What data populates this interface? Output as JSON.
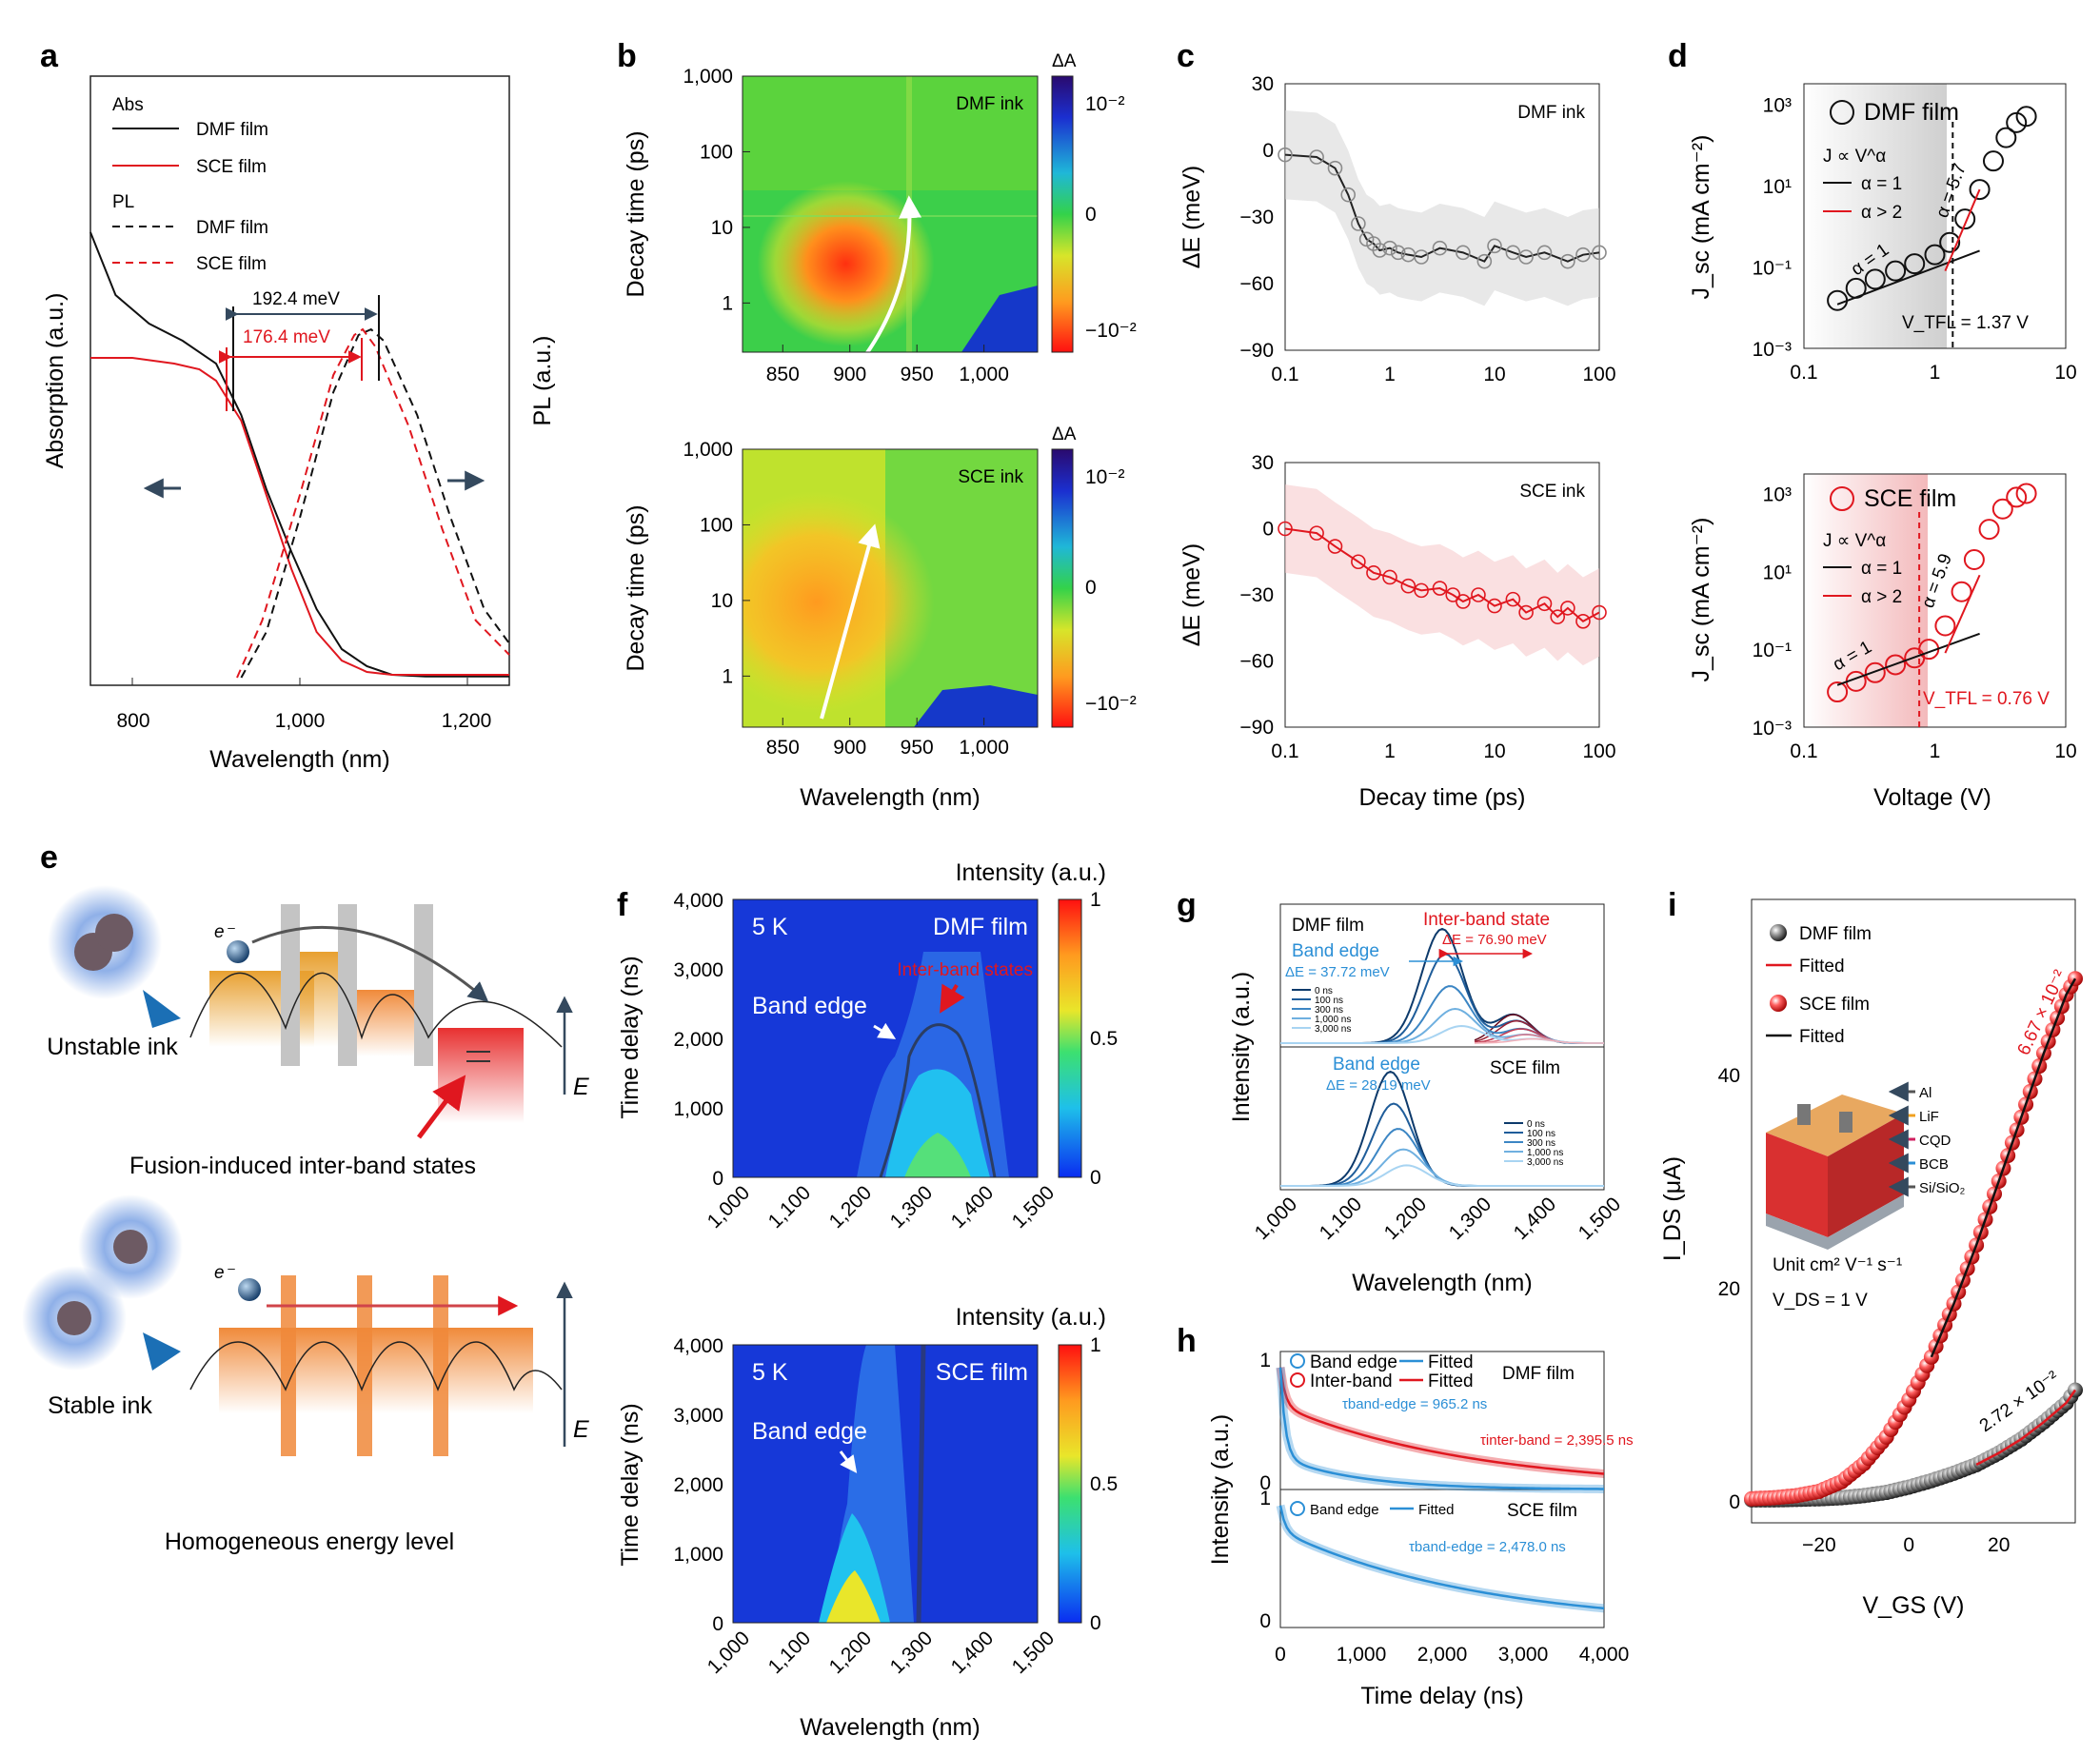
{
  "panel_labels": {
    "a": "a",
    "b": "b",
    "c": "c",
    "d": "d",
    "e": "e",
    "f": "f",
    "g": "g",
    "h": "h",
    "i": "i"
  },
  "colors": {
    "black": "#111111",
    "red": "#e0171f",
    "blue": "#2b8fd6",
    "grey": "#8a8a8a",
    "pink": "#f6c7c8"
  },
  "chart_data": [
    {
      "id": "a",
      "type": "line",
      "xlabel": "Wavelength (nm)",
      "ylabel_left": "Absorption (a.u.)",
      "ylabel_right": "PL (a.u.)",
      "xticks": [
        "800",
        "1,000",
        "1,200"
      ],
      "xlim": [
        750,
        1250
      ],
      "legend": {
        "abs_header": "Abs",
        "pl_header": "PL",
        "dmf": "DMF film",
        "sce": "SCE film"
      },
      "annotations": {
        "dmf_shift": "192.4 meV",
        "sce_shift": "176.4 meV"
      },
      "series": [
        {
          "name": "DMF film",
          "kind": "Abs",
          "x": [
            750,
            780,
            820,
            860,
            900,
            930,
            960,
            990,
            1020,
            1050,
            1080,
            1110,
            1150,
            1250
          ],
          "y": [
            0.78,
            0.67,
            0.62,
            0.59,
            0.55,
            0.46,
            0.33,
            0.22,
            0.12,
            0.05,
            0.02,
            0.005,
            0.002,
            0.002
          ]
        },
        {
          "name": "SCE film",
          "kind": "Abs",
          "x": [
            750,
            800,
            850,
            880,
            900,
            930,
            960,
            990,
            1020,
            1050,
            1080,
            1110,
            1250
          ],
          "y": [
            0.56,
            0.56,
            0.55,
            0.54,
            0.52,
            0.45,
            0.32,
            0.19,
            0.08,
            0.03,
            0.01,
            0.005,
            0.005
          ]
        },
        {
          "name": "DMF film",
          "kind": "PL",
          "x": [
            930,
            960,
            1000,
            1040,
            1070,
            1085,
            1100,
            1140,
            1180,
            1220,
            1250
          ],
          "y": [
            0.0,
            0.08,
            0.28,
            0.5,
            0.6,
            0.61,
            0.59,
            0.46,
            0.28,
            0.12,
            0.06
          ]
        },
        {
          "name": "SCE film",
          "kind": "PL",
          "x": [
            925,
            955,
            1000,
            1040,
            1065,
            1075,
            1090,
            1130,
            1170,
            1210,
            1250
          ],
          "y": [
            0.0,
            0.1,
            0.32,
            0.53,
            0.6,
            0.61,
            0.58,
            0.44,
            0.26,
            0.1,
            0.04
          ]
        }
      ]
    },
    {
      "id": "b",
      "type": "heatmap",
      "xlabel": "Wavelength (nm)",
      "ylabel": "Decay time (ps)",
      "cbar_label": "ΔA",
      "xticks": [
        "850",
        "900",
        "950",
        "1,000"
      ],
      "yticks": [
        "1,000",
        "100",
        "10",
        "1"
      ],
      "cbar_ticks": [
        "10⁻²",
        "0",
        "−10⁻²"
      ],
      "maps": [
        {
          "name": "DMF ink"
        },
        {
          "name": "SCE ink"
        }
      ]
    },
    {
      "id": "c",
      "type": "scatter",
      "xlabel": "Decay time (ps)",
      "ylabel": "ΔE (meV)",
      "xticks": [
        "0.1",
        "1",
        "10",
        "100"
      ],
      "yticks": [
        "30",
        "0",
        "−30",
        "−60",
        "−90"
      ],
      "ylim": [
        -90,
        30
      ],
      "series": [
        {
          "name": "DMF ink",
          "x": [
            0.1,
            0.2,
            0.3,
            0.4,
            0.5,
            0.6,
            0.7,
            0.8,
            1,
            1.2,
            1.5,
            2,
            3,
            5,
            8,
            10,
            15,
            20,
            30,
            50,
            70,
            100
          ],
          "y": [
            -2,
            -3,
            -8,
            -20,
            -33,
            -40,
            -42,
            -45,
            -44,
            -46,
            -47,
            -48,
            -44,
            -46,
            -50,
            -43,
            -46,
            -48,
            -46,
            -50,
            -47,
            -46
          ]
        },
        {
          "name": "SCE ink",
          "x": [
            0.1,
            0.2,
            0.3,
            0.5,
            0.7,
            1,
            1.5,
            2,
            3,
            4,
            5,
            7,
            10,
            15,
            20,
            30,
            40,
            50,
            70,
            100
          ],
          "y": [
            0,
            -2,
            -8,
            -15,
            -20,
            -22,
            -26,
            -28,
            -27,
            -30,
            -33,
            -30,
            -35,
            -32,
            -38,
            -34,
            -40,
            -36,
            -42,
            -38
          ]
        }
      ]
    },
    {
      "id": "d",
      "type": "scatter",
      "xlabel": "Voltage (V)",
      "ylabel": "J_sc (mA cm⁻²)",
      "xticks": [
        "0.1",
        "1",
        "10"
      ],
      "yticks": [
        "10³",
        "10¹",
        "10⁻¹",
        "10⁻³"
      ],
      "legend": {
        "law": "J ∝ V^α",
        "ohmic": "α = 1",
        "tcl": "α > 2"
      },
      "series": [
        {
          "name": "DMF film",
          "vtfl": "V_TFL = 1.37 V",
          "slope_ohm": "α = 1",
          "slope_tcl": "α = 5.7",
          "x": [
            0.18,
            0.25,
            0.35,
            0.5,
            0.7,
            1,
            1.3,
            1.7,
            2.2,
            2.8,
            3.5,
            4.2,
            5
          ],
          "y": [
            0.015,
            0.03,
            0.05,
            0.08,
            0.12,
            0.2,
            0.4,
            1.5,
            8,
            40,
            150,
            350,
            500
          ]
        },
        {
          "name": "SCE film",
          "vtfl": "V_TFL = 0.76 V",
          "slope_ohm": "α = 1",
          "slope_tcl": "α = 5.9",
          "x": [
            0.18,
            0.25,
            0.35,
            0.5,
            0.7,
            0.9,
            1.2,
            1.6,
            2,
            2.6,
            3.3,
            4.2,
            5
          ],
          "y": [
            0.008,
            0.015,
            0.025,
            0.04,
            0.06,
            0.1,
            0.4,
            3,
            20,
            120,
            400,
            800,
            1000
          ]
        }
      ]
    },
    {
      "id": "f",
      "type": "heatmap",
      "xlabel": "Wavelength (nm)",
      "ylabel": "Time delay (ns)",
      "cbar_label": "Intensity (a.u.)",
      "xticks": [
        "1,000",
        "1,100",
        "1,200",
        "1,300",
        "1,400",
        "1,500"
      ],
      "yticks": [
        "4,000",
        "3,000",
        "2,000",
        "1,000",
        "0"
      ],
      "cbar_ticks": [
        "1",
        "0.5",
        "0"
      ],
      "maps": [
        {
          "name": "DMF film",
          "temp": "5 K",
          "labels": {
            "band_edge": "Band edge",
            "inter": "Inter-band states"
          }
        },
        {
          "name": "SCE film",
          "temp": "5 K",
          "labels": {
            "band_edge": "Band edge"
          }
        }
      ]
    },
    {
      "id": "g",
      "type": "line",
      "xlabel": "Wavelength (nm)",
      "ylabel": "Intensity (a.u.)",
      "xticks": [
        "1,000",
        "1,100",
        "1,200",
        "1,300",
        "1,400",
        "1,500"
      ],
      "legend_times": [
        "0 ns",
        "100 ns",
        "300 ns",
        "1,000 ns",
        "3,000 ns"
      ],
      "series": [
        {
          "name": "DMF film",
          "band_edge": "Band edge",
          "band_dE": "ΔE = 37.72 meV",
          "inter": "Inter-band state",
          "inter_dE": "ΔE = 76.90 meV",
          "peak_nm": [
            1250,
            1255,
            1262,
            1270,
            1280
          ],
          "amp": [
            1.0,
            0.78,
            0.5,
            0.3,
            0.15
          ]
        },
        {
          "name": "SCE film",
          "band_edge": "Band edge",
          "band_dE": "ΔE = 28.19 meV",
          "peak_nm": [
            1170,
            1175,
            1182,
            1190,
            1195
          ],
          "amp": [
            1.0,
            0.72,
            0.5,
            0.32,
            0.18
          ]
        }
      ]
    },
    {
      "id": "h",
      "type": "line",
      "xlabel": "Time delay (ns)",
      "ylabel": "Intensity (a.u.)",
      "xticks": [
        "0",
        "1,000",
        "2,000",
        "3,000",
        "4,000"
      ],
      "yticks": [
        "1",
        "0"
      ],
      "legend": {
        "band": "Band edge",
        "inter": "Inter-band",
        "fitted": "Fitted"
      },
      "series": [
        {
          "name": "DMF film",
          "tau_band": "τband-edge = 965.2 ns",
          "tau_inter": "τinter-band = 2,395.5 ns"
        },
        {
          "name": "SCE film",
          "tau_band": "τband-edge = 2,478.0 ns"
        }
      ]
    },
    {
      "id": "i",
      "type": "scatter",
      "xlabel": "V_GS (V)",
      "ylabel": "I_DS (μA)",
      "xticks": [
        "−20",
        "0",
        "20"
      ],
      "yticks": [
        "40",
        "20",
        "0"
      ],
      "legend": {
        "dmf": "DMF film",
        "sce": "SCE film",
        "fitted": "Fitted"
      },
      "mobility": {
        "sce": "6.67 × 10⁻²",
        "dmf": "2.72 × 10⁻²"
      },
      "inset": {
        "layers": [
          "Al",
          "LiF",
          "CQD",
          "BCB",
          "Si/SiO₂"
        ],
        "unit": "Unit cm² V⁻¹ s⁻¹",
        "vds": "V_DS = 1 V"
      },
      "series": [
        {
          "name": "SCE film",
          "x": [
            -35,
            -30,
            -25,
            -20,
            -15,
            -10,
            -5,
            0,
            5,
            10,
            15,
            20,
            25,
            30,
            35,
            37
          ],
          "y": [
            0.2,
            0.3,
            0.5,
            0.9,
            1.8,
            3.5,
            6,
            9.5,
            13.5,
            18.5,
            24,
            30,
            36,
            42,
            47.5,
            49
          ]
        },
        {
          "name": "DMF film",
          "x": [
            -35,
            -30,
            -25,
            -20,
            -15,
            -10,
            -5,
            0,
            5,
            10,
            15,
            20,
            25,
            30,
            35,
            37
          ],
          "y": [
            0.1,
            0.1,
            0.15,
            0.2,
            0.3,
            0.5,
            0.8,
            1.3,
            1.9,
            2.6,
            3.4,
            4.5,
            5.8,
            7.4,
            9.2,
            10.4
          ]
        }
      ]
    }
  ],
  "schematic_e": {
    "unstable": "Unstable ink",
    "stable": "Stable ink",
    "fusion": "Fusion-induced inter-band states",
    "homog": "Homogeneous energy level",
    "axis": "E",
    "electron": "e⁻"
  }
}
